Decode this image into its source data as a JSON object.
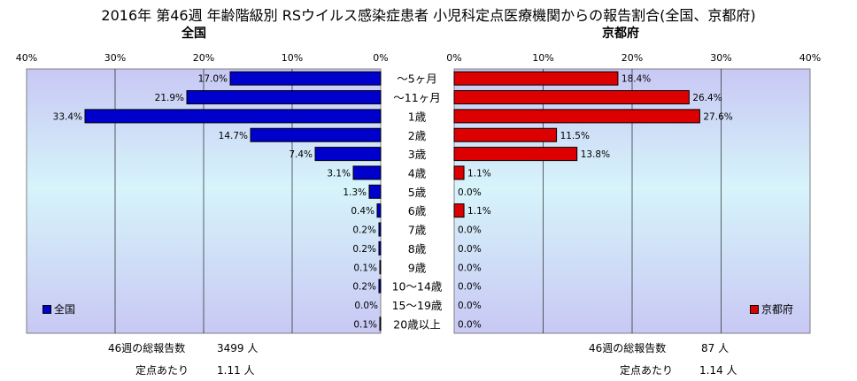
{
  "title": "2016年 第46週 年齢階級別 RSウイルス感染症患者 小児科定点医療機関からの報告割合(全国、京都府)",
  "chart_data": {
    "type": "bar",
    "orientation": "horizontal",
    "layout": "back-to-back",
    "categories": [
      "～5ヶ月",
      "～11ヶ月",
      "1歳",
      "2歳",
      "3歳",
      "4歳",
      "5歳",
      "6歳",
      "7歳",
      "8歳",
      "9歳",
      "10～14歳",
      "15～19歳",
      "20歳以上"
    ],
    "tick_labels": [
      "0%",
      "10%",
      "20%",
      "30%",
      "40%"
    ],
    "xlim": [
      0,
      40
    ],
    "grid": true,
    "series": [
      {
        "name": "全国",
        "panel_title": "全国",
        "color": "#0000cc",
        "legend_position": "bottom-left",
        "values": [
          17.0,
          21.9,
          33.4,
          14.7,
          7.4,
          3.1,
          1.3,
          0.4,
          0.2,
          0.2,
          0.1,
          0.2,
          0.0,
          0.1
        ],
        "value_labels": [
          "17.0%",
          "21.9%",
          "33.4%",
          "14.7%",
          "7.4%",
          "3.1%",
          "1.3%",
          "0.4%",
          "0.2%",
          "0.2%",
          "0.1%",
          "0.2%",
          "0.0%",
          "0.1%"
        ]
      },
      {
        "name": "京都府",
        "panel_title": "京都府",
        "color": "#dd0000",
        "legend_position": "bottom-right",
        "values": [
          18.4,
          26.4,
          27.6,
          11.5,
          13.8,
          1.1,
          0.0,
          1.1,
          0.0,
          0.0,
          0.0,
          0.0,
          0.0,
          0.0
        ],
        "value_labels": [
          "18.4%",
          "26.4%",
          "27.6%",
          "11.5%",
          "13.8%",
          "1.1%",
          "0.0%",
          "1.1%",
          "0.0%",
          "0.0%",
          "0.0%",
          "0.0%",
          "0.0%",
          "0.0%"
        ]
      }
    ]
  },
  "footer": {
    "national": {
      "total_label": "46週の総報告数",
      "total_value": "3499 人",
      "per_label": "定点あたり",
      "per_value": "1.11 人"
    },
    "kyoto": {
      "total_label": "46週の総報告数",
      "total_value": "87 人",
      "per_label": "定点あたり",
      "per_value": "1.14 人"
    }
  }
}
